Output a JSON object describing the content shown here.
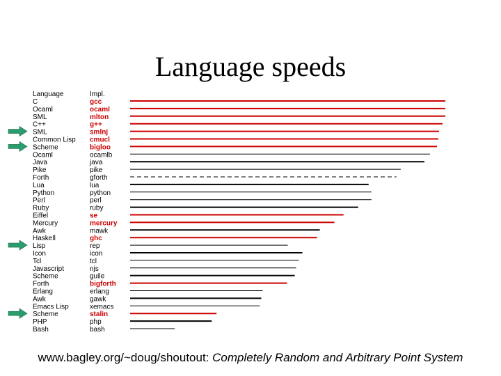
{
  "title": "Language speeds",
  "footer": {
    "url": "www.bagley.org/~doug/shoutout:",
    "caption": "Completely Random and Arbitrary Point System"
  },
  "colors": {
    "highlight": "#cc0000",
    "normal": "#000000",
    "arrow": "#2a9d6e"
  },
  "chart_data": {
    "type": "bar",
    "orientation": "horizontal",
    "headers": [
      "Language",
      "Impl."
    ],
    "rows": [
      {
        "language": "C",
        "impl": "gcc",
        "value": 452,
        "highlight": true,
        "style": "solid",
        "arrow": false
      },
      {
        "language": "Ocaml",
        "impl": "ocaml",
        "value": 452,
        "highlight": true,
        "style": "solid",
        "arrow": false
      },
      {
        "language": "SML",
        "impl": "mlton",
        "value": 452,
        "highlight": true,
        "style": "solid",
        "arrow": false
      },
      {
        "language": "C++",
        "impl": "g++",
        "value": 448,
        "highlight": true,
        "style": "solid",
        "arrow": false
      },
      {
        "language": "SML",
        "impl": "smlnj",
        "value": 443,
        "highlight": true,
        "style": "solid",
        "arrow": true
      },
      {
        "language": "Common Lisp",
        "impl": "cmucl",
        "value": 442,
        "highlight": true,
        "style": "solid",
        "arrow": false
      },
      {
        "language": "Scheme",
        "impl": "bigloo",
        "value": 440,
        "highlight": true,
        "style": "solid",
        "arrow": true
      },
      {
        "language": "Ocaml",
        "impl": "ocamlb",
        "value": 430,
        "highlight": false,
        "style": "solid",
        "arrow": false
      },
      {
        "language": "Java",
        "impl": "java",
        "value": 422,
        "highlight": false,
        "style": "solid",
        "arrow": false
      },
      {
        "language": "Pike",
        "impl": "pike",
        "value": 388,
        "highlight": false,
        "style": "solid",
        "arrow": false
      },
      {
        "language": "Forth",
        "impl": "gforth",
        "value": 382,
        "highlight": false,
        "style": "dashed",
        "arrow": false
      },
      {
        "language": "Lua",
        "impl": "lua",
        "value": 342,
        "highlight": false,
        "style": "solid",
        "arrow": false
      },
      {
        "language": "Python",
        "impl": "python",
        "value": 346,
        "highlight": false,
        "style": "solid",
        "arrow": false
      },
      {
        "language": "Perl",
        "impl": "perl",
        "value": 346,
        "highlight": false,
        "style": "solid",
        "arrow": false
      },
      {
        "language": "Ruby",
        "impl": "ruby",
        "value": 327,
        "highlight": false,
        "style": "solid",
        "arrow": false
      },
      {
        "language": "Eiffel",
        "impl": "se",
        "value": 306,
        "highlight": true,
        "style": "solid",
        "arrow": false
      },
      {
        "language": "Mercury",
        "impl": "mercury",
        "value": 293,
        "highlight": true,
        "style": "solid",
        "arrow": false
      },
      {
        "language": "Awk",
        "impl": "mawk",
        "value": 272,
        "highlight": false,
        "style": "solid",
        "arrow": false
      },
      {
        "language": "Haskell",
        "impl": "ghc",
        "value": 268,
        "highlight": true,
        "style": "solid",
        "arrow": false
      },
      {
        "language": "Lisp",
        "impl": "rep",
        "value": 226,
        "highlight": false,
        "style": "solid",
        "arrow": true
      },
      {
        "language": "Icon",
        "impl": "icon",
        "value": 247,
        "highlight": false,
        "style": "solid",
        "arrow": false
      },
      {
        "language": "Tcl",
        "impl": "tcl",
        "value": 242,
        "highlight": false,
        "style": "solid",
        "arrow": false
      },
      {
        "language": "Javascript",
        "impl": "njs",
        "value": 238,
        "highlight": false,
        "style": "solid",
        "arrow": false
      },
      {
        "language": "Scheme",
        "impl": "guile",
        "value": 236,
        "highlight": false,
        "style": "solid",
        "arrow": false
      },
      {
        "language": "Forth",
        "impl": "bigforth",
        "value": 225,
        "highlight": true,
        "style": "solid",
        "arrow": false
      },
      {
        "language": "Erlang",
        "impl": "erlang",
        "value": 190,
        "highlight": false,
        "style": "solid",
        "arrow": false
      },
      {
        "language": "Awk",
        "impl": "gawk",
        "value": 188,
        "highlight": false,
        "style": "solid",
        "arrow": false
      },
      {
        "language": "Emacs Lisp",
        "impl": "xemacs",
        "value": 186,
        "highlight": false,
        "style": "solid",
        "arrow": false
      },
      {
        "language": "Scheme",
        "impl": "stalin",
        "value": 124,
        "highlight": true,
        "style": "solid",
        "arrow": true
      },
      {
        "language": "PHP",
        "impl": "php",
        "value": 117,
        "highlight": false,
        "style": "solid",
        "arrow": false
      },
      {
        "language": "Bash",
        "impl": "bash",
        "value": 64,
        "highlight": false,
        "style": "solid",
        "arrow": false
      }
    ]
  }
}
